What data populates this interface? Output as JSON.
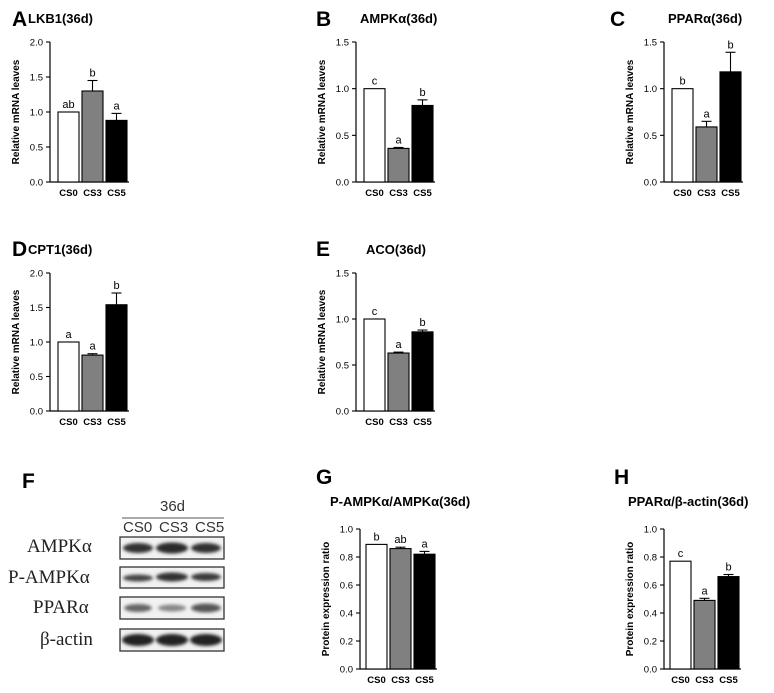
{
  "chart_data": [
    {
      "panel": "A",
      "type": "bar",
      "title": "LKB1(36d)",
      "ylabel": "Relative mRNA leaves",
      "ylim": [
        0,
        2.0
      ],
      "yticks": [
        "0.0",
        "0.5",
        "1.0",
        "1.5",
        "2.0"
      ],
      "categories": [
        "CS0",
        "CS3",
        "CS5"
      ],
      "values": [
        1.0,
        1.3,
        0.88
      ],
      "errors": [
        0.0,
        0.15,
        0.1
      ],
      "sig_letters": [
        "ab",
        "b",
        "a"
      ]
    },
    {
      "panel": "B",
      "type": "bar",
      "title": "AMPKα(36d)",
      "ylabel": "Relative mRNA leaves",
      "ylim": [
        0,
        1.5
      ],
      "yticks": [
        "0.0",
        "0.5",
        "1.0",
        "1.5"
      ],
      "categories": [
        "CS0",
        "CS3",
        "CS5"
      ],
      "values": [
        1.0,
        0.36,
        0.82
      ],
      "errors": [
        0.0,
        0.01,
        0.06
      ],
      "sig_letters": [
        "c",
        "a",
        "b"
      ]
    },
    {
      "panel": "C",
      "type": "bar",
      "title": "PPARα(36d)",
      "ylabel": "Relative mRNA leaves",
      "ylim": [
        0,
        1.5
      ],
      "yticks": [
        "0.0",
        "0.5",
        "1.0",
        "1.5"
      ],
      "categories": [
        "CS0",
        "CS3",
        "CS5"
      ],
      "values": [
        1.0,
        0.59,
        1.18
      ],
      "errors": [
        0.0,
        0.06,
        0.21
      ],
      "sig_letters": [
        "b",
        "a",
        "b"
      ]
    },
    {
      "panel": "D",
      "type": "bar",
      "title": "CPT1(36d)",
      "ylabel": "Relative mRNA leaves",
      "ylim": [
        0,
        2.0
      ],
      "yticks": [
        "0.0",
        "0.5",
        "1.0",
        "1.5",
        "2.0"
      ],
      "categories": [
        "CS0",
        "CS3",
        "CS5"
      ],
      "values": [
        1.0,
        0.81,
        1.54
      ],
      "errors": [
        0.0,
        0.02,
        0.17
      ],
      "sig_letters": [
        "a",
        "a",
        "b"
      ]
    },
    {
      "panel": "E",
      "type": "bar",
      "title": "ACO(36d)",
      "ylabel": "Relative mRNA leaves",
      "ylim": [
        0,
        1.5
      ],
      "yticks": [
        "0.0",
        "0.5",
        "1.0",
        "1.5"
      ],
      "categories": [
        "CS0",
        "CS3",
        "CS5"
      ],
      "values": [
        1.0,
        0.63,
        0.86
      ],
      "errors": [
        0.0,
        0.01,
        0.02
      ],
      "sig_letters": [
        "c",
        "a",
        "b"
      ]
    },
    {
      "panel": "G",
      "type": "bar",
      "title": "P-AMPKα/AMPKα(36d)",
      "ylabel": "Protein expression ratio",
      "ylim": [
        0,
        1.0
      ],
      "yticks": [
        "0.0",
        "0.2",
        "0.4",
        "0.6",
        "0.8",
        "1.0"
      ],
      "categories": [
        "CS0",
        "CS3",
        "CS5"
      ],
      "values": [
        0.89,
        0.86,
        0.82
      ],
      "errors": [
        0.0,
        0.01,
        0.02
      ],
      "sig_letters": [
        "b",
        "ab",
        "a"
      ]
    },
    {
      "panel": "H",
      "type": "bar",
      "title": "PPARα/β-actin(36d)",
      "ylabel": "Protein expression ratio",
      "ylim": [
        0,
        1.0
      ],
      "yticks": [
        "0.0",
        "0.2",
        "0.4",
        "0.6",
        "0.8",
        "1.0"
      ],
      "categories": [
        "CS0",
        "CS3",
        "CS5"
      ],
      "values": [
        0.77,
        0.49,
        0.66
      ],
      "errors": [
        0.0,
        0.015,
        0.015
      ],
      "sig_letters": [
        "c",
        "a",
        "b"
      ]
    }
  ],
  "bar_colors": [
    "#ffffff",
    "#808080",
    "#000000"
  ],
  "western_blot": {
    "panel": "F",
    "header": "36d",
    "lanes": [
      "CS0",
      "CS3",
      "CS5"
    ],
    "rows": [
      "AMPKα",
      "P-AMPKα",
      "PPARα",
      "β-actin"
    ]
  }
}
